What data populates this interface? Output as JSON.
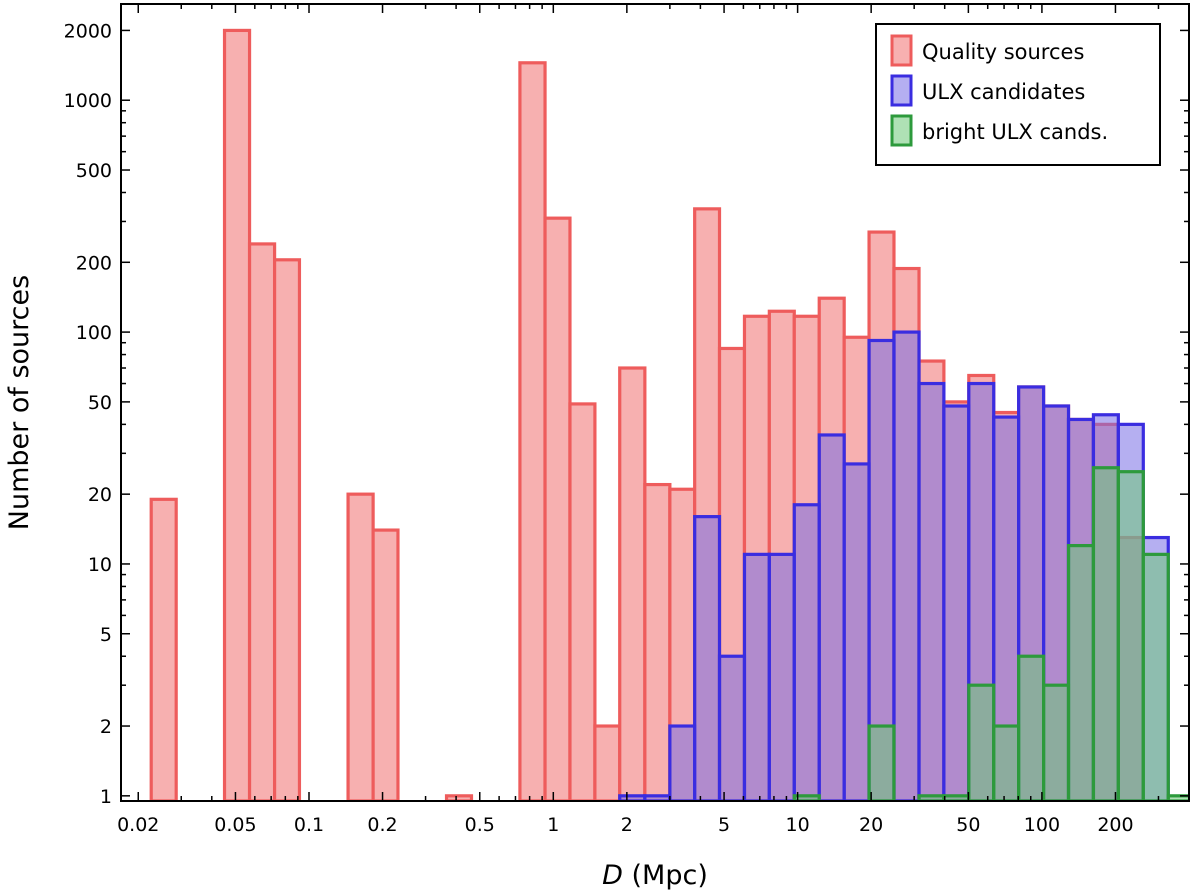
{
  "chart_data": {
    "type": "bar",
    "xlabel_var": "D",
    "xlabel_unit": " (Mpc)",
    "ylabel": "Number of sources",
    "xscale": "log",
    "yscale": "log",
    "xlim": [
      0.017,
      400
    ],
    "ylim": [
      0.95,
      2600
    ],
    "xticks": [
      {
        "value": 0.02,
        "label": "0.02"
      },
      {
        "value": 0.05,
        "label": "0.05"
      },
      {
        "value": 0.1,
        "label": "0.1"
      },
      {
        "value": 0.2,
        "label": "0.2"
      },
      {
        "value": 0.5,
        "label": "0.5"
      },
      {
        "value": 1,
        "label": "1"
      },
      {
        "value": 2,
        "label": "2"
      },
      {
        "value": 5,
        "label": "5"
      },
      {
        "value": 10,
        "label": "10"
      },
      {
        "value": 20,
        "label": "20"
      },
      {
        "value": 50,
        "label": "50"
      },
      {
        "value": 100,
        "label": "100"
      },
      {
        "value": 200,
        "label": "200"
      }
    ],
    "yticks": [
      {
        "value": 1,
        "label": "1"
      },
      {
        "value": 2,
        "label": "2"
      },
      {
        "value": 5,
        "label": "5"
      },
      {
        "value": 10,
        "label": "10"
      },
      {
        "value": 20,
        "label": "20"
      },
      {
        "value": 50,
        "label": "50"
      },
      {
        "value": 100,
        "label": "100"
      },
      {
        "value": 200,
        "label": "200"
      },
      {
        "value": 500,
        "label": "500"
      },
      {
        "value": 1000,
        "label": "1000"
      },
      {
        "value": 2000,
        "label": "2000"
      }
    ],
    "legend_position": "top-right",
    "series": [
      {
        "name": "Quality sources",
        "fill": "#f7b0b0",
        "stroke": "#ee5c5c",
        "bins": [
          {
            "lo": 0.0226,
            "hi": 0.0286,
            "value": 19
          },
          {
            "lo": 0.0451,
            "hi": 0.0571,
            "value": 2000
          },
          {
            "lo": 0.0571,
            "hi": 0.0723,
            "value": 240
          },
          {
            "lo": 0.0723,
            "hi": 0.0914,
            "value": 205
          },
          {
            "lo": 0.1445,
            "hi": 0.183,
            "value": 20
          },
          {
            "lo": 0.183,
            "hi": 0.2313,
            "value": 14
          },
          {
            "lo": 0.3655,
            "hi": 0.4625,
            "value": 1
          },
          {
            "lo": 0.73,
            "hi": 0.925,
            "value": 1450
          },
          {
            "lo": 0.925,
            "hi": 1.17,
            "value": 310
          },
          {
            "lo": 1.17,
            "hi": 1.48,
            "value": 49
          },
          {
            "lo": 1.48,
            "hi": 1.87,
            "value": 2
          },
          {
            "lo": 1.87,
            "hi": 2.37,
            "value": 70
          },
          {
            "lo": 2.37,
            "hi": 3.0,
            "value": 22
          },
          {
            "lo": 3.0,
            "hi": 3.79,
            "value": 21
          },
          {
            "lo": 3.79,
            "hi": 4.79,
            "value": 340
          },
          {
            "lo": 4.79,
            "hi": 6.06,
            "value": 85
          },
          {
            "lo": 6.06,
            "hi": 7.66,
            "value": 117
          },
          {
            "lo": 7.66,
            "hi": 9.69,
            "value": 123
          },
          {
            "lo": 9.69,
            "hi": 12.26,
            "value": 117
          },
          {
            "lo": 12.26,
            "hi": 15.51,
            "value": 140
          },
          {
            "lo": 15.51,
            "hi": 19.61,
            "value": 95
          },
          {
            "lo": 19.61,
            "hi": 24.8,
            "value": 270
          },
          {
            "lo": 24.8,
            "hi": 31.4,
            "value": 188
          },
          {
            "lo": 31.4,
            "hi": 39.7,
            "value": 75
          },
          {
            "lo": 39.7,
            "hi": 50.2,
            "value": 50
          },
          {
            "lo": 50.2,
            "hi": 63.5,
            "value": 65
          },
          {
            "lo": 63.5,
            "hi": 80.3,
            "value": 45
          },
          {
            "lo": 80.3,
            "hi": 101.6,
            "value": 58
          },
          {
            "lo": 101.6,
            "hi": 128.5,
            "value": 48
          },
          {
            "lo": 128.5,
            "hi": 162.5,
            "value": 42
          },
          {
            "lo": 162.5,
            "hi": 205.5,
            "value": 40
          },
          {
            "lo": 205.5,
            "hi": 260.0,
            "value": 13
          }
        ]
      },
      {
        "name": "ULX candidates",
        "fill": "rgba(120,110,230,0.55)",
        "stroke": "#3a2de0",
        "bins": [
          {
            "lo": 1.87,
            "hi": 2.37,
            "value": 1
          },
          {
            "lo": 2.37,
            "hi": 3.0,
            "value": 1
          },
          {
            "lo": 3.0,
            "hi": 3.79,
            "value": 2
          },
          {
            "lo": 3.79,
            "hi": 4.79,
            "value": 16
          },
          {
            "lo": 4.79,
            "hi": 6.06,
            "value": 4
          },
          {
            "lo": 6.06,
            "hi": 7.66,
            "value": 11
          },
          {
            "lo": 7.66,
            "hi": 9.69,
            "value": 11
          },
          {
            "lo": 9.69,
            "hi": 12.26,
            "value": 18
          },
          {
            "lo": 12.26,
            "hi": 15.51,
            "value": 36
          },
          {
            "lo": 15.51,
            "hi": 19.61,
            "value": 27
          },
          {
            "lo": 19.61,
            "hi": 24.8,
            "value": 92
          },
          {
            "lo": 24.8,
            "hi": 31.4,
            "value": 100
          },
          {
            "lo": 31.4,
            "hi": 39.7,
            "value": 60
          },
          {
            "lo": 39.7,
            "hi": 50.2,
            "value": 48
          },
          {
            "lo": 50.2,
            "hi": 63.5,
            "value": 60
          },
          {
            "lo": 63.5,
            "hi": 80.3,
            "value": 43
          },
          {
            "lo": 80.3,
            "hi": 101.6,
            "value": 58
          },
          {
            "lo": 101.6,
            "hi": 128.5,
            "value": 48
          },
          {
            "lo": 128.5,
            "hi": 162.5,
            "value": 42
          },
          {
            "lo": 162.5,
            "hi": 205.5,
            "value": 44
          },
          {
            "lo": 205.5,
            "hi": 260.0,
            "value": 40
          },
          {
            "lo": 260.0,
            "hi": 329.0,
            "value": 13
          }
        ]
      },
      {
        "name": "bright ULX cands.",
        "fill": "rgba(110,200,120,0.55)",
        "stroke": "#2d9a3c",
        "bins": [
          {
            "lo": 9.69,
            "hi": 12.26,
            "value": 1
          },
          {
            "lo": 19.61,
            "hi": 24.8,
            "value": 2
          },
          {
            "lo": 31.4,
            "hi": 39.7,
            "value": 1
          },
          {
            "lo": 39.7,
            "hi": 50.2,
            "value": 1
          },
          {
            "lo": 50.2,
            "hi": 63.5,
            "value": 3
          },
          {
            "lo": 63.5,
            "hi": 80.3,
            "value": 2
          },
          {
            "lo": 80.3,
            "hi": 101.6,
            "value": 4
          },
          {
            "lo": 101.6,
            "hi": 128.5,
            "value": 3
          },
          {
            "lo": 128.5,
            "hi": 162.5,
            "value": 12
          },
          {
            "lo": 162.5,
            "hi": 205.5,
            "value": 26
          },
          {
            "lo": 205.5,
            "hi": 260.0,
            "value": 25
          },
          {
            "lo": 260.0,
            "hi": 329.0,
            "value": 11
          },
          {
            "lo": 329.0,
            "hi": 416.0,
            "value": 1
          },
          {
            "lo": 416.0,
            "hi": 526.0,
            "value": 1
          }
        ]
      }
    ]
  }
}
